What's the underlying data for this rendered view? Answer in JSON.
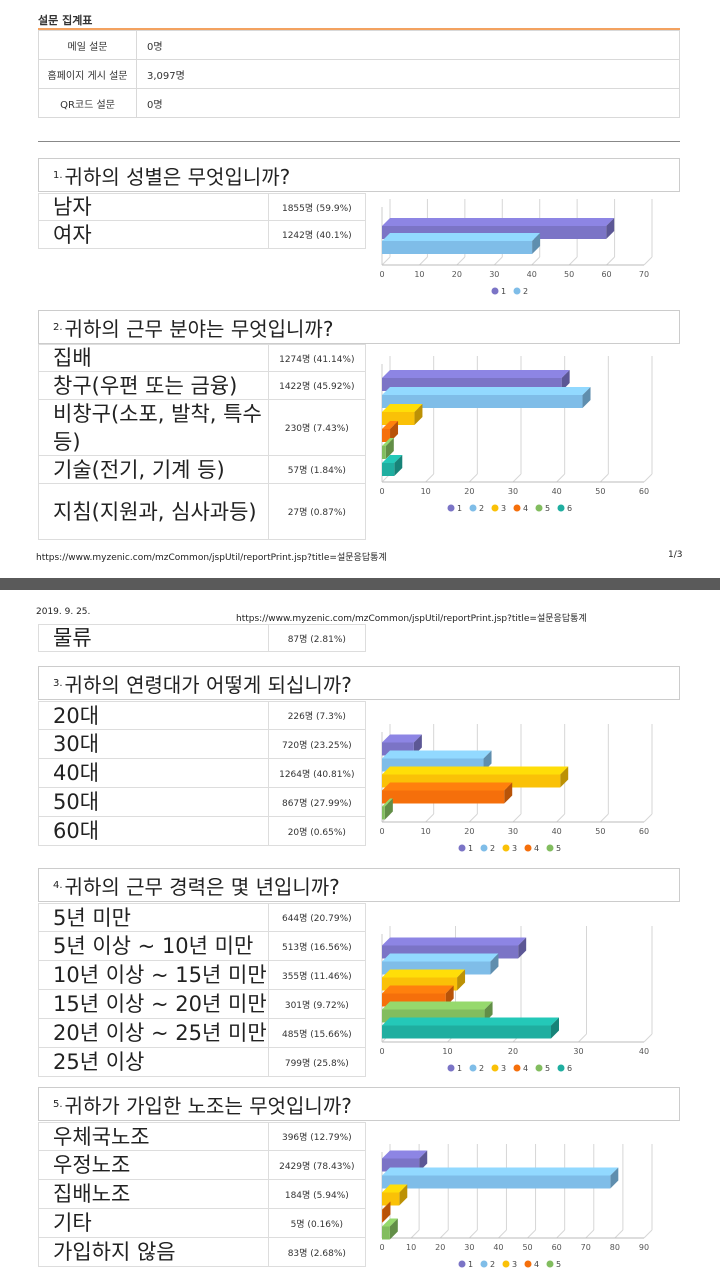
{
  "page1": {
    "title": "설문 집계표",
    "summary": [
      {
        "label": "메일 설문",
        "value": "0명"
      },
      {
        "label": "홈페이지 게시 설문",
        "value": "3,097명"
      },
      {
        "label": "QR코드 설문",
        "value": "0명"
      }
    ],
    "footer_url": "https://www.myzenic.com/mzCommon/jspUtil/reportPrint.jsp?title=설문응답통계",
    "footer_page": "1/3"
  },
  "page2": {
    "date": "2019. 9. 25.",
    "header_url": "https://www.myzenic.com/mzCommon/jspUtil/reportPrint.jsp?title=설문응답통계"
  },
  "questions": [
    {
      "num": "1.",
      "text": "귀하의 성별은 무엇입니까?",
      "answers": [
        {
          "label": "남자",
          "value": "1855명 (59.9%)"
        },
        {
          "label": "여자",
          "value": "1242명 (40.1%)"
        }
      ]
    },
    {
      "num": "2.",
      "text": "귀하의 근무 분야는 무엇입니까?",
      "answers": [
        {
          "label": "집배",
          "value": "1274명 (41.14%)"
        },
        {
          "label": "창구(우편 또는 금융)",
          "value": "1422명 (45.92%)"
        },
        {
          "label": "비창구(소포, 발착, 특수등)",
          "value": "230명 (7.43%)"
        },
        {
          "label": "기술(전기, 기계 등)",
          "value": "57명 (1.84%)"
        },
        {
          "label": "지침(지원과, 심사과등)",
          "value": "27명 (0.87%)"
        }
      ],
      "continued": {
        "label": "물류",
        "value": "87명 (2.81%)"
      }
    },
    {
      "num": "3.",
      "text": "귀하의 연령대가 어떻게 되십니까?",
      "answers": [
        {
          "label": "20대",
          "value": "226명 (7.3%)"
        },
        {
          "label": "30대",
          "value": "720명 (23.25%)"
        },
        {
          "label": "40대",
          "value": "1264명 (40.81%)"
        },
        {
          "label": "50대",
          "value": "867명 (27.99%)"
        },
        {
          "label": "60대",
          "value": "20명 (0.65%)"
        }
      ]
    },
    {
      "num": "4.",
      "text": "귀하의 근무 경력은 몇 년입니까?",
      "answers": [
        {
          "label": "5년 미만",
          "value": "644명 (20.79%)"
        },
        {
          "label": "5년 이상 ~ 10년 미만",
          "value": "513명 (16.56%)"
        },
        {
          "label": "10년 이상 ~ 15년 미만",
          "value": "355명 (11.46%)"
        },
        {
          "label": "15년 이상 ~ 20년 미만",
          "value": "301명 (9.72%)"
        },
        {
          "label": "20년 이상 ~ 25년 미만",
          "value": "485명 (15.66%)"
        },
        {
          "label": "25년 이상",
          "value": "799명 (25.8%)"
        }
      ]
    },
    {
      "num": "5.",
      "text": "귀하가 가입한 노조는 무엇입니까?",
      "answers": [
        {
          "label": "우체국노조",
          "value": "396명 (12.79%)"
        },
        {
          "label": "우정노조",
          "value": "2429명 (78.43%)"
        },
        {
          "label": "집배노조",
          "value": "184명 (5.94%)"
        },
        {
          "label": "기타",
          "value": "5명 (0.16%)"
        },
        {
          "label": "가입하지 않음",
          "value": "83명 (2.68%)"
        }
      ]
    }
  ],
  "colors": {
    "series": [
      "#7b74c6",
      "#7fbde8",
      "#fac107",
      "#f56f0b",
      "#82bd5f",
      "#1faea0"
    ],
    "accent_rule": "#f3a260"
  },
  "chart_data": [
    {
      "type": "bar",
      "orientation": "horizontal",
      "categories": [
        "1",
        "2"
      ],
      "values": [
        59.9,
        40.1
      ],
      "xlim": [
        0,
        70
      ],
      "ticks": [
        0,
        10,
        20,
        30,
        40,
        50,
        60,
        70
      ],
      "legend": [
        "1",
        "2"
      ],
      "legend_position": "bottom"
    },
    {
      "type": "bar",
      "orientation": "horizontal",
      "categories": [
        "1",
        "2",
        "3",
        "4",
        "5",
        "6"
      ],
      "values": [
        41.14,
        45.92,
        7.43,
        1.84,
        0.87,
        2.81
      ],
      "xlim": [
        0,
        60
      ],
      "ticks": [
        0,
        10,
        20,
        30,
        40,
        50,
        60
      ],
      "legend": [
        "1",
        "2",
        "3",
        "4",
        "5",
        "6"
      ],
      "legend_position": "bottom"
    },
    {
      "type": "bar",
      "orientation": "horizontal",
      "categories": [
        "1",
        "2",
        "3",
        "4",
        "5"
      ],
      "values": [
        7.3,
        23.25,
        40.81,
        27.99,
        0.65
      ],
      "xlim": [
        0,
        60
      ],
      "ticks": [
        0,
        10,
        20,
        30,
        40,
        50,
        60
      ],
      "legend": [
        "1",
        "2",
        "3",
        "4",
        "5"
      ],
      "legend_position": "bottom"
    },
    {
      "type": "bar",
      "orientation": "horizontal",
      "categories": [
        "1",
        "2",
        "3",
        "4",
        "5",
        "6"
      ],
      "values": [
        20.79,
        16.56,
        11.46,
        9.72,
        15.66,
        25.8
      ],
      "xlim": [
        0,
        40
      ],
      "ticks": [
        0,
        10,
        20,
        30,
        40
      ],
      "legend": [
        "1",
        "2",
        "3",
        "4",
        "5",
        "6"
      ],
      "legend_position": "bottom"
    },
    {
      "type": "bar",
      "orientation": "horizontal",
      "categories": [
        "1",
        "2",
        "3",
        "4",
        "5"
      ],
      "values": [
        12.79,
        78.43,
        5.94,
        0.16,
        2.68
      ],
      "xlim": [
        0,
        90
      ],
      "ticks": [
        0,
        10,
        20,
        30,
        40,
        50,
        60,
        70,
        80,
        90
      ],
      "legend": [
        "1",
        "2",
        "3",
        "4",
        "5"
      ],
      "legend_position": "bottom"
    }
  ]
}
